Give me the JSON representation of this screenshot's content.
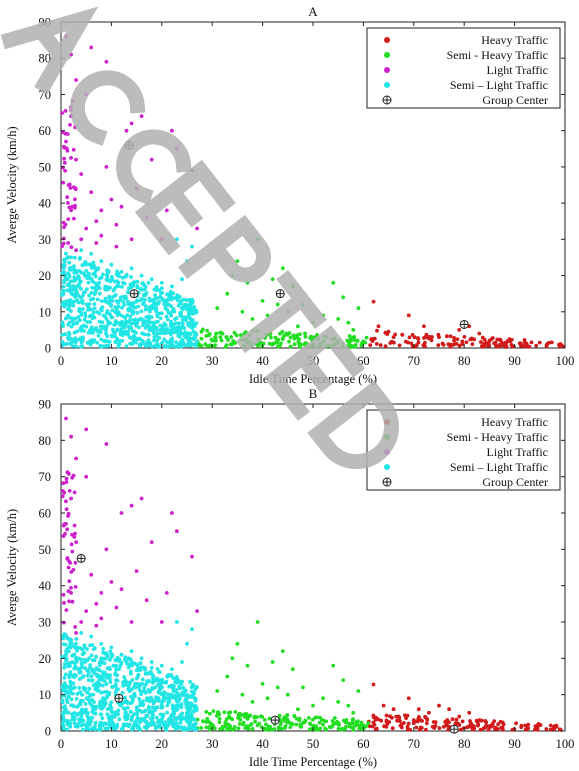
{
  "colors": {
    "heavy": "#d11a1a",
    "semi_heavy": "#22dd22",
    "light": "#cc22cc",
    "semi_light": "#22e5e5",
    "center": "#222222",
    "watermark": "#b0b0b0"
  },
  "watermark_icon": "accepted-stamp-watermark",
  "chart_data": [
    {
      "type": "scatter",
      "title": "A",
      "xlabel": "Idle Time Percentage (%)",
      "ylabel": "Averge Velocity (km/h)",
      "xlim": [
        0,
        100
      ],
      "ylim": [
        0,
        90
      ],
      "xticks": [
        "0",
        "10",
        "20",
        "30",
        "40",
        "50",
        "60",
        "70",
        "80",
        "90",
        "100"
      ],
      "yticks": [
        "0",
        "10",
        "20",
        "30",
        "40",
        "50",
        "60",
        "70",
        "80",
        "90"
      ],
      "legend_position": "top-right",
      "legend": [
        "Heavy Traffic",
        "Semi - Heavy Traffic",
        "Light Traffic",
        "Semi – Light Traffic",
        "Group Center"
      ],
      "series": [
        {
          "name": "Heavy Traffic",
          "color_key": "heavy",
          "region": {
            "x": [
              61,
              100
            ],
            "ymax_at_start": 5,
            "ymax_at_end": 1.5
          },
          "n": 170,
          "points": [
            [
              62,
              12.8
            ],
            [
              63,
              6
            ],
            [
              66,
              3
            ],
            [
              69,
              9
            ],
            [
              72,
              6
            ],
            [
              75,
              3
            ],
            [
              79,
              5
            ],
            [
              81,
              6
            ],
            [
              83,
              4
            ],
            [
              78,
              2
            ],
            [
              85,
              2
            ]
          ]
        },
        {
          "name": "Semi - Heavy Traffic",
          "color_key": "semi_heavy",
          "region": {
            "x": [
              27,
              61
            ],
            "ymax_at_start": 6,
            "ymax_at_end": 3
          },
          "n": 230,
          "points": [
            [
              33,
              15
            ],
            [
              34,
              20
            ],
            [
              35,
              24
            ],
            [
              37,
              18
            ],
            [
              39,
              30
            ],
            [
              40,
              13
            ],
            [
              42,
              19
            ],
            [
              44,
              22
            ],
            [
              46,
              17
            ],
            [
              45,
              10
            ],
            [
              48,
              12
            ],
            [
              54,
              18
            ],
            [
              52,
              9
            ],
            [
              55,
              8
            ],
            [
              57,
              7
            ],
            [
              58,
              5
            ],
            [
              36,
              10
            ],
            [
              38,
              8
            ],
            [
              41,
              9
            ],
            [
              47,
              6
            ],
            [
              50,
              7
            ],
            [
              56,
              14
            ],
            [
              43,
              12
            ],
            [
              31,
              11
            ],
            [
              59,
              11
            ]
          ]
        },
        {
          "name": "Light Traffic",
          "color_key": "light",
          "region": {
            "x": [
              0,
              3
            ],
            "y": [
              27,
              70
            ]
          },
          "n": 45,
          "points": [
            [
              1,
              86
            ],
            [
              2,
              81
            ],
            [
              6,
              83
            ],
            [
              3,
              74
            ],
            [
              9,
              79
            ],
            [
              5,
              70
            ],
            [
              2,
              64
            ],
            [
              1,
              57
            ],
            [
              3,
              52
            ],
            [
              1.5,
              45
            ],
            [
              4,
              48
            ],
            [
              6,
              43
            ],
            [
              2,
              38
            ],
            [
              7,
              35
            ],
            [
              10,
              41
            ],
            [
              5,
              33
            ],
            [
              8,
              38
            ],
            [
              9,
              50
            ],
            [
              13,
              60
            ],
            [
              14,
              62
            ],
            [
              16,
              64
            ],
            [
              22,
              60
            ],
            [
              18,
              52
            ],
            [
              15,
              44
            ],
            [
              11,
              34
            ],
            [
              12,
              39
            ],
            [
              4,
              30
            ],
            [
              3,
              27
            ],
            [
              26,
              49
            ],
            [
              27,
              33
            ],
            [
              21,
              38
            ],
            [
              7,
              29
            ],
            [
              11,
              28
            ],
            [
              20,
              30
            ],
            [
              23,
              55
            ],
            [
              17,
              36
            ],
            [
              14,
              30
            ],
            [
              8,
              31
            ]
          ]
        },
        {
          "name": "Semi – Light Traffic",
          "color_key": "semi_light",
          "region": {
            "x": [
              0,
              27
            ],
            "y": [
              0,
              27
            ]
          },
          "n": 900,
          "points": [
            [
              2,
              25
            ],
            [
              4,
              27
            ],
            [
              6,
              26
            ],
            [
              8,
              24
            ],
            [
              10,
              23
            ],
            [
              12,
              21
            ],
            [
              14,
              22
            ],
            [
              16,
              20
            ],
            [
              18,
              19
            ],
            [
              20,
              18
            ],
            [
              22,
              17
            ],
            [
              24,
              19
            ],
            [
              26,
              28
            ],
            [
              23,
              30
            ],
            [
              25,
              24
            ]
          ]
        }
      ],
      "group_centers": [
        [
          13.5,
          56
        ],
        [
          14.5,
          15
        ],
        [
          43.5,
          15
        ],
        [
          80,
          6.5
        ]
      ]
    },
    {
      "type": "scatter",
      "title": "B",
      "xlabel": "Idle Time Percentage (%)",
      "ylabel": "Averge Velocity (km/h)",
      "xlim": [
        0,
        100
      ],
      "ylim": [
        0,
        90
      ],
      "xticks": [
        "0",
        "10",
        "20",
        "30",
        "40",
        "50",
        "60",
        "70",
        "80",
        "90",
        "100"
      ],
      "yticks": [
        "0",
        "10",
        "20",
        "30",
        "40",
        "50",
        "60",
        "70",
        "80",
        "90"
      ],
      "legend_position": "top-right",
      "legend": [
        "Heavy Traffic",
        "Semi - Heavy Traffic",
        "Light Traffic",
        "Semi – Light Traffic",
        "Group Center"
      ],
      "series": [
        {
          "name": "Heavy Traffic",
          "color_key": "heavy",
          "region": {
            "x": [
              61,
              100
            ],
            "ymax_at_start": 5,
            "ymax_at_end": 1.5
          },
          "n": 200,
          "points": [
            [
              62,
              12.8
            ],
            [
              64,
              7
            ],
            [
              66,
              6
            ],
            [
              69,
              9
            ],
            [
              71,
              6
            ],
            [
              73,
              5
            ],
            [
              75,
              7
            ],
            [
              77,
              6
            ],
            [
              79,
              4
            ],
            [
              81,
              5
            ],
            [
              83,
              3
            ],
            [
              67,
              4
            ],
            [
              70,
              3
            ]
          ]
        },
        {
          "name": "Semi - Heavy Traffic",
          "color_key": "semi_heavy",
          "region": {
            "x": [
              27,
              61
            ],
            "ymax_at_start": 6,
            "ymax_at_end": 3
          },
          "n": 260,
          "points": [
            [
              33,
              15
            ],
            [
              34,
              20
            ],
            [
              35,
              24
            ],
            [
              37,
              18
            ],
            [
              39,
              30
            ],
            [
              40,
              13
            ],
            [
              42,
              19
            ],
            [
              44,
              22
            ],
            [
              46,
              17
            ],
            [
              45,
              10
            ],
            [
              48,
              12
            ],
            [
              54,
              18
            ],
            [
              52,
              9
            ],
            [
              55,
              8
            ],
            [
              57,
              7
            ],
            [
              58,
              5
            ],
            [
              36,
              10
            ],
            [
              38,
              8
            ],
            [
              41,
              9
            ],
            [
              47,
              6
            ],
            [
              50,
              7
            ],
            [
              56,
              14
            ],
            [
              43,
              12
            ],
            [
              31,
              11
            ],
            [
              59,
              11
            ]
          ]
        },
        {
          "name": "Light Traffic",
          "color_key": "light",
          "region": {
            "x": [
              0,
              3
            ],
            "y": [
              27,
              72
            ]
          },
          "n": 50,
          "points": [
            [
              1,
              86
            ],
            [
              2,
              81
            ],
            [
              5,
              83
            ],
            [
              3,
              75
            ],
            [
              9,
              79
            ],
            [
              5,
              70
            ],
            [
              2,
              64
            ],
            [
              1,
              57
            ],
            [
              3,
              52
            ],
            [
              1.5,
              45
            ],
            [
              6,
              43
            ],
            [
              2,
              38
            ],
            [
              7,
              35
            ],
            [
              10,
              41
            ],
            [
              5,
              33
            ],
            [
              8,
              38
            ],
            [
              9,
              50
            ],
            [
              12,
              60
            ],
            [
              14,
              62
            ],
            [
              16,
              64
            ],
            [
              22,
              60
            ],
            [
              18,
              52
            ],
            [
              15,
              44
            ],
            [
              11,
              34
            ],
            [
              12,
              39
            ],
            [
              4,
              30
            ],
            [
              3,
              27
            ],
            [
              26,
              48
            ],
            [
              27,
              33
            ],
            [
              21,
              38
            ],
            [
              7,
              29
            ],
            [
              20,
              30
            ],
            [
              23,
              55
            ],
            [
              17,
              36
            ],
            [
              14,
              30
            ],
            [
              8,
              31
            ]
          ]
        },
        {
          "name": "Semi – Light Traffic",
          "color_key": "semi_light",
          "region": {
            "x": [
              0,
              27
            ],
            "y": [
              0,
              27
            ]
          },
          "n": 950,
          "points": [
            [
              2,
              25
            ],
            [
              4,
              27
            ],
            [
              6,
              26
            ],
            [
              8,
              24
            ],
            [
              10,
              23
            ],
            [
              12,
              21
            ],
            [
              14,
              22
            ],
            [
              16,
              20
            ],
            [
              18,
              19
            ],
            [
              20,
              18
            ],
            [
              22,
              17
            ],
            [
              24,
              19
            ],
            [
              26,
              28
            ],
            [
              23,
              30
            ],
            [
              25,
              24
            ]
          ]
        }
      ],
      "group_centers": [
        [
          4,
          47.5
        ],
        [
          11.5,
          9
        ],
        [
          42.5,
          3
        ],
        [
          78,
          0.5
        ]
      ]
    }
  ]
}
